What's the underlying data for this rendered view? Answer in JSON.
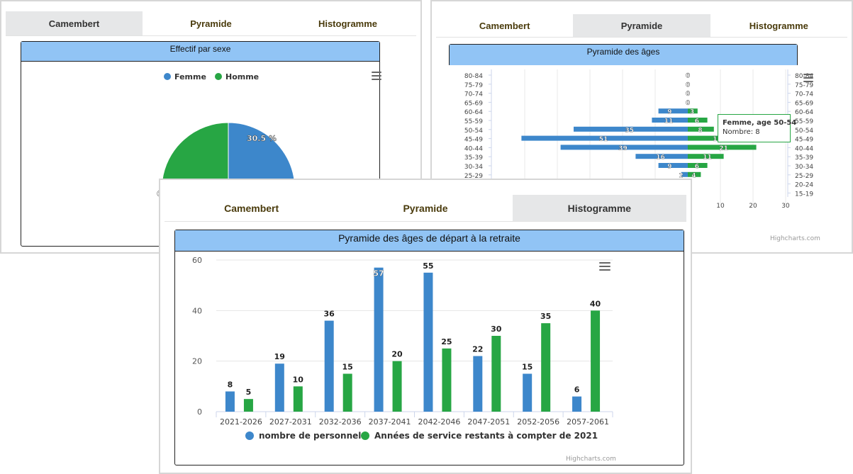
{
  "tabs": {
    "camembert": "Camembert",
    "pyramide": "Pyramide",
    "histogramme": "Histogramme"
  },
  "panel1": {
    "title": "Effectif par sexe",
    "legend": [
      "Femme",
      "Homme"
    ],
    "chart_data": {
      "type": "pie",
      "title": "Effectif par sexe",
      "labels": [
        "Femme",
        "Homme"
      ],
      "values": [
        30.5,
        69.5
      ],
      "data_labels": [
        "30.5 %",
        "69.5 %"
      ],
      "colors": [
        "#3d87cb",
        "#27a644"
      ]
    },
    "pie_label_visible": "30.5 %",
    "pie_label_partial": "6"
  },
  "panel2": {
    "title": "Pyramide des âges",
    "tooltip": {
      "title": "Femme, age 50-54",
      "line": "Nombre: 8"
    },
    "xticks": [
      "10",
      "20",
      "30"
    ],
    "credit": "Highcharts.com",
    "chart_data": {
      "type": "bar",
      "title": "Pyramide des âges",
      "categories": [
        "80-84",
        "75-79",
        "70-74",
        "65-69",
        "60-64",
        "55-59",
        "50-54",
        "45-49",
        "40-44",
        "35-39",
        "30-34",
        "25-29",
        "20-24",
        "15-19"
      ],
      "series": [
        {
          "name": "Homme",
          "values": [
            0,
            0,
            0,
            0,
            9,
            11,
            35,
            51,
            39,
            16,
            9,
            2,
            null,
            null
          ]
        },
        {
          "name": "Femme",
          "values": [
            0,
            0,
            0,
            0,
            3,
            6,
            8,
            17,
            21,
            11,
            6,
            4,
            null,
            null
          ]
        }
      ],
      "colors": [
        "#3d87cb",
        "#27a644"
      ]
    }
  },
  "panel3": {
    "title": "Pyramide des âges de départ à la retraite",
    "credit": "Highcharts.com",
    "legend": [
      "nombre de personnel",
      "Années de service restants à compter de 2021"
    ],
    "chart_data": {
      "type": "bar",
      "title": "Pyramide des âges de départ à la retraite",
      "categories": [
        "2021-2026",
        "2027-2031",
        "2032-2036",
        "2037-2041",
        "2042-2046",
        "2047-2051",
        "2052-2056",
        "2057-2061"
      ],
      "series": [
        {
          "name": "nombre de personnel",
          "values": [
            8,
            19,
            36,
            57,
            55,
            22,
            15,
            6
          ]
        },
        {
          "name": "Années de service restants à compter de 2021",
          "values": [
            5,
            10,
            15,
            20,
            25,
            30,
            35,
            40
          ]
        }
      ],
      "yticks": [
        0,
        20,
        40,
        60
      ],
      "ylim": [
        0,
        60
      ],
      "colors": [
        "#3d87cb",
        "#27a644"
      ]
    }
  }
}
